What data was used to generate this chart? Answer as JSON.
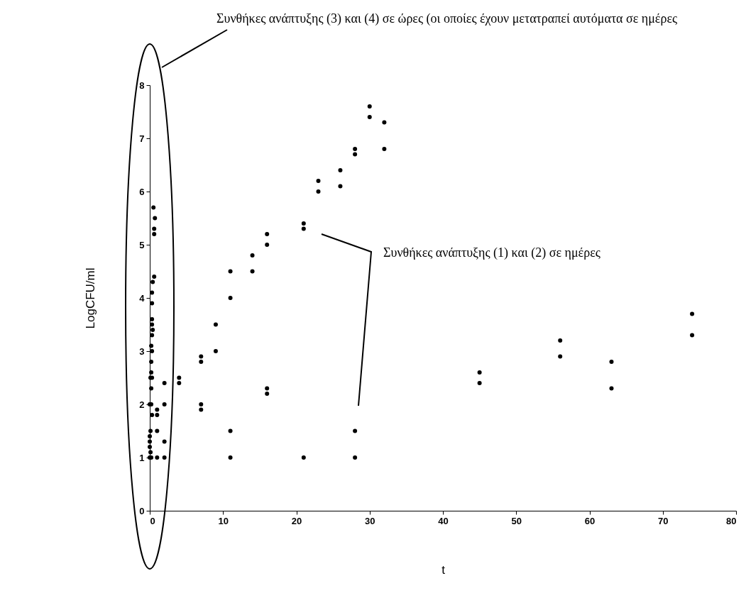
{
  "chart_data": {
    "type": "scatter",
    "xlabel": "t",
    "ylabel": "LogCFU/ml",
    "annotations": [
      "Συνθήκες ανάπτυξης (3) και (4) σε ώρες (οι οποίες έχουν μετατραπεί αυτόματα σε ημέρες",
      "Συνθήκες ανάπτυξης (1) και (2) σε ημέρες"
    ],
    "series": [
      {
        "color": "#000000",
        "x": [
          0.5,
          0.7,
          0.6,
          0.6,
          0.6,
          0.4,
          0.3,
          0.3,
          0.3,
          0.3,
          0.4,
          0.3,
          0.2,
          0.3,
          0.2,
          0.2,
          0.1,
          0.3,
          0.2,
          0,
          0.2,
          0.3,
          0.1,
          0,
          0,
          0,
          0.1,
          0,
          0.2,
          1,
          1,
          1,
          1,
          2,
          2,
          2,
          2,
          4,
          4,
          7,
          7,
          9,
          9,
          11,
          11,
          14,
          14,
          16,
          16,
          21,
          21,
          23,
          23,
          26,
          26,
          28,
          28,
          30,
          30,
          32,
          32,
          7,
          7,
          16,
          16,
          11,
          11,
          21,
          28,
          28,
          45,
          45,
          56,
          56,
          63,
          63,
          74,
          74
        ],
        "values": [
          5.7,
          5.5,
          5.3,
          5.2,
          4.4,
          4.3,
          4.1,
          3.9,
          3.6,
          3.5,
          3.4,
          3.3,
          3.1,
          3,
          2.8,
          2.6,
          2.5,
          2.5,
          2.3,
          2,
          2,
          1.8,
          1.5,
          1.4,
          1.3,
          1.2,
          1.1,
          1,
          1,
          1.9,
          1.8,
          1.5,
          1,
          2.4,
          2,
          1.3,
          1,
          2.5,
          2.4,
          2.9,
          2.8,
          3.5,
          3,
          4.5,
          4,
          4.8,
          4.5,
          5.2,
          5,
          5.4,
          5.3,
          6.2,
          6,
          6.4,
          6.1,
          6.8,
          6.7,
          7.6,
          7.4,
          7.3,
          6.8,
          2,
          1.9,
          2.3,
          2.2,
          1.5,
          1,
          1,
          1.5,
          1,
          2.6,
          2.4,
          3.2,
          2.9,
          2.8,
          2.3,
          3.7,
          3.3
        ]
      }
    ],
    "xlim": [
      0,
      80
    ],
    "xticks": [
      0,
      10,
      20,
      30,
      40,
      50,
      60,
      70,
      80
    ],
    "ylim": [
      0,
      8
    ],
    "yticks": [
      0,
      1,
      2,
      3,
      4,
      5,
      6,
      7,
      8
    ],
    "grid": false,
    "marker": "circle"
  }
}
